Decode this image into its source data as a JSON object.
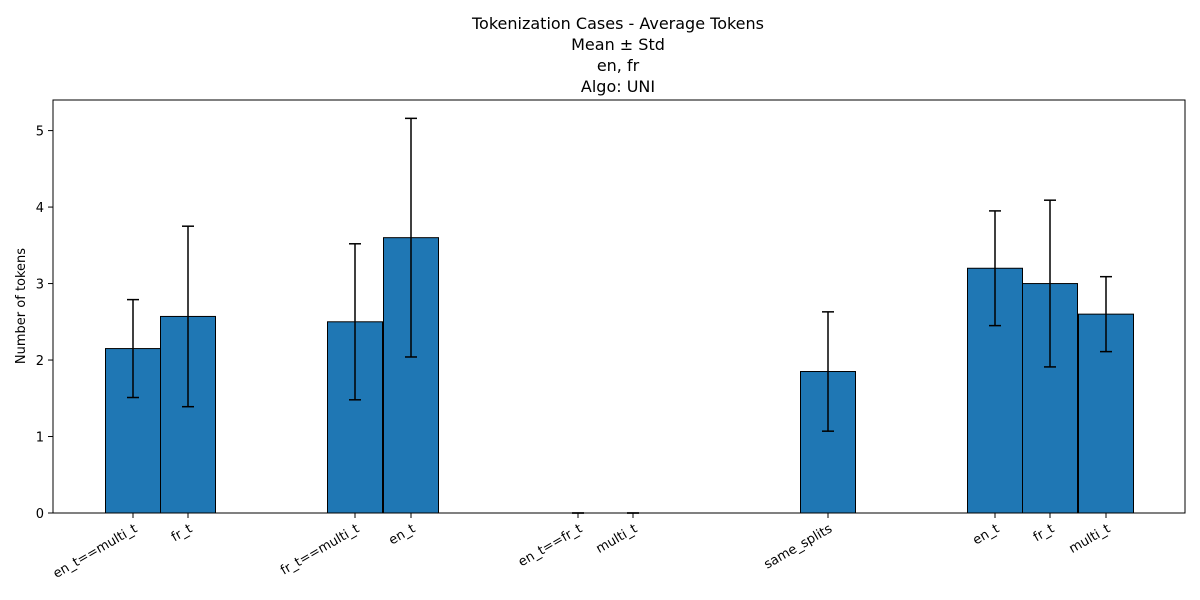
{
  "chart_data": {
    "type": "bar",
    "title_lines": [
      "Tokenization Cases - Average Tokens",
      "Mean ± Std",
      "en, fr",
      "Algo: UNI"
    ],
    "xlabel": "",
    "ylabel": "Number of tokens",
    "ylim": [
      0,
      5.4
    ],
    "yticks": [
      0,
      1,
      2,
      3,
      4,
      5
    ],
    "grid": false,
    "bar_color": "#1f77b4",
    "edge_color": "#000000",
    "bars": [
      {
        "label": "en_t==multi_t",
        "value": 2.15,
        "std": 0.64
      },
      {
        "label": "fr_t",
        "value": 2.57,
        "std": 1.18
      },
      {
        "label": "fr_t==multi_t",
        "value": 2.5,
        "std": 1.02
      },
      {
        "label": "en_t",
        "value": 3.6,
        "std": 1.56
      },
      {
        "label": "en_t==fr_t",
        "value": 0,
        "std": 0
      },
      {
        "label": "multi_t",
        "value": 0,
        "std": 0
      },
      {
        "label": "same_splits",
        "value": 1.85,
        "std": 0.78
      },
      {
        "label": "en_t",
        "value": 3.2,
        "std": 0.75
      },
      {
        "label": "fr_t",
        "value": 3.0,
        "std": 1.09
      },
      {
        "label": "multi_t",
        "value": 2.6,
        "std": 0.49
      }
    ]
  }
}
